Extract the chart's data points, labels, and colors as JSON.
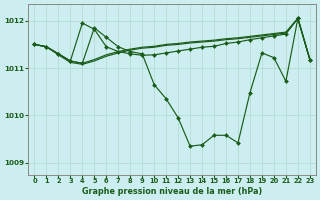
{
  "title": "Graphe pression niveau de la mer (hPa)",
  "bg_color": "#cdeef0",
  "line_color": "#1a5c1a",
  "grid_color": "#b0d8cc",
  "spine_color": "#888888",
  "xlim": [
    -0.5,
    23.5
  ],
  "ylim": [
    1008.75,
    1012.35
  ],
  "yticks": [
    1009,
    1010,
    1011,
    1012
  ],
  "xticks": [
    0,
    1,
    2,
    3,
    4,
    5,
    6,
    7,
    8,
    9,
    10,
    11,
    12,
    13,
    14,
    15,
    16,
    17,
    18,
    19,
    20,
    21,
    22,
    23
  ],
  "series_dip": [
    1011.5,
    1011.45,
    1011.3,
    1011.15,
    1011.1,
    1011.85,
    1011.65,
    1011.45,
    1011.35,
    1011.3,
    1010.65,
    1010.35,
    1009.95,
    1009.35,
    1009.38,
    1009.58,
    1009.58,
    1009.42,
    1010.48,
    1011.32,
    1011.22,
    1010.72,
    1012.05,
    1011.18
  ],
  "series_high_peak": [
    1011.5,
    1011.45,
    1011.3,
    1011.15,
    1011.95,
    1011.82,
    1011.45,
    1011.35,
    1011.3,
    1011.27,
    1011.28,
    1011.32,
    1011.36,
    1011.4,
    1011.44,
    1011.46,
    1011.52,
    1011.55,
    1011.6,
    1011.64,
    1011.68,
    1011.72,
    1012.05,
    1011.18
  ],
  "series_flat1": [
    1011.5,
    1011.45,
    1011.3,
    1011.15,
    1011.1,
    1011.18,
    1011.28,
    1011.35,
    1011.4,
    1011.44,
    1011.46,
    1011.5,
    1011.52,
    1011.55,
    1011.57,
    1011.59,
    1011.62,
    1011.64,
    1011.67,
    1011.7,
    1011.73,
    1011.76,
    1012.05,
    1011.18
  ],
  "series_flat2": [
    1011.5,
    1011.45,
    1011.28,
    1011.12,
    1011.08,
    1011.15,
    1011.25,
    1011.32,
    1011.38,
    1011.42,
    1011.44,
    1011.48,
    1011.5,
    1011.53,
    1011.55,
    1011.57,
    1011.6,
    1011.62,
    1011.65,
    1011.68,
    1011.71,
    1011.74,
    1012.05,
    1011.18
  ]
}
